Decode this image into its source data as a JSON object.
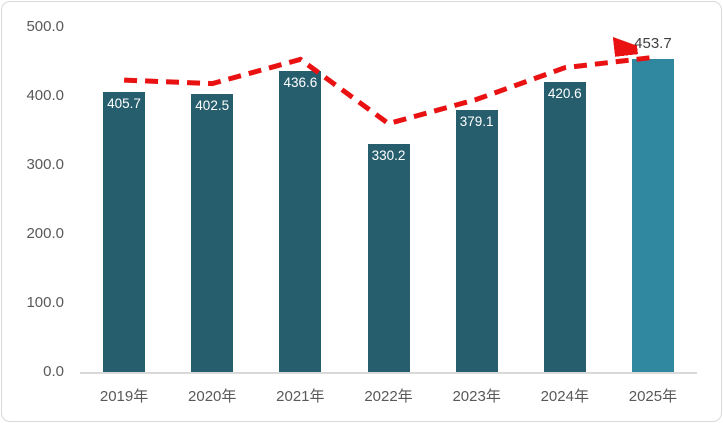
{
  "chart_data": {
    "type": "bar",
    "title": "",
    "categories": [
      "2019年",
      "2020年",
      "2021年",
      "2022年",
      "2023年",
      "2024年",
      "2025年"
    ],
    "values": [
      405.7,
      402.5,
      436.6,
      330.2,
      379.1,
      420.6,
      453.7
    ],
    "data_labels": [
      "405.7",
      "402.5",
      "436.6",
      "330.2",
      "379.1",
      "420.6",
      "453.7"
    ],
    "highlight_index": 6,
    "xlabel": "",
    "ylabel": "",
    "ylim": [
      0,
      500
    ],
    "yticks": [
      {
        "label": "500.0",
        "value": 500
      },
      {
        "label": "400.0",
        "value": 400
      },
      {
        "label": "300.0",
        "value": 300
      },
      {
        "label": "200.0",
        "value": 200
      },
      {
        "label": "100.0",
        "value": 100
      },
      {
        "label": "0.0",
        "value": 0
      }
    ],
    "grid": false,
    "legend": "none",
    "trend_line": {
      "type": "dashed-arrow",
      "values": [
        423,
        418,
        453,
        360,
        395,
        441,
        456
      ],
      "arrow_end": true
    }
  },
  "colors": {
    "bar": "#265e6e",
    "bar_highlight": "#2f87a0",
    "trend": "#e91111",
    "axis_line": "#d9d9d9",
    "tick_text": "#595959",
    "value_label_inside": "#ffffff",
    "value_label_outside": "#404040",
    "frame_border": "#d9d9d9",
    "background": "#ffffff"
  }
}
